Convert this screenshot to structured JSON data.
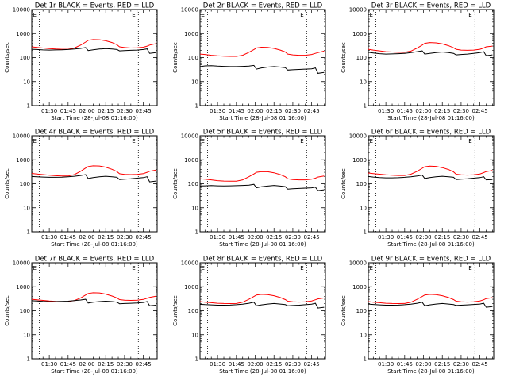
{
  "chart_data": {
    "common": {
      "type": "line",
      "yscale": "log",
      "ylim": [
        1,
        10000
      ],
      "ytick_values": [
        1,
        10,
        100,
        1000,
        10000
      ],
      "ytick_labels": [
        "1",
        "10",
        "100",
        "1000",
        "10000"
      ],
      "xtick_labels": [
        "01:30",
        "01:45",
        "02:00",
        "02:15",
        "02:30",
        "02:45"
      ],
      "xlabel": "Start Time (28-Jul-08 01:16:00)",
      "ylabel": "Counts/sec",
      "x_times": [
        "01:16",
        "01:20",
        "01:25",
        "01:30",
        "01:35",
        "01:40",
        "01:45",
        "01:50",
        "01:55",
        "01:59",
        "02:01",
        "02:05",
        "02:10",
        "02:15",
        "02:20",
        "02:24",
        "02:26",
        "02:30",
        "02:35",
        "02:40",
        "02:45",
        "02:48",
        "02:50",
        "02:55"
      ],
      "vlines": [
        "01:22",
        "02:41"
      ],
      "marker_labels": [
        "E",
        "E"
      ],
      "series_colors": {
        "events": "#000000",
        "lld": "#ff0000"
      },
      "series_names": [
        "Events",
        "LLD"
      ]
    },
    "panels": [
      {
        "title": "Det 1r BLACK = Events, RED = LLD",
        "events": [
          220,
          215,
          208,
          205,
          207,
          210,
          215,
          225,
          240,
          260,
          195,
          210,
          225,
          235,
          225,
          215,
          190,
          195,
          200,
          205,
          215,
          230,
          150,
          160
        ],
        "lld": [
          280,
          265,
          250,
          235,
          225,
          220,
          220,
          250,
          330,
          440,
          520,
          560,
          550,
          500,
          420,
          340,
          280,
          260,
          250,
          255,
          270,
          300,
          330,
          380
        ]
      },
      {
        "title": "Det 2r BLACK = Events, RED = LLD",
        "events": [
          42,
          45,
          46,
          44,
          43,
          42,
          42,
          43,
          44,
          47,
          33,
          37,
          40,
          42,
          40,
          38,
          30,
          31,
          32,
          33,
          34,
          37,
          22,
          24
        ],
        "lld": [
          140,
          135,
          125,
          118,
          115,
          112,
          112,
          125,
          165,
          215,
          250,
          270,
          265,
          240,
          205,
          170,
          140,
          130,
          125,
          125,
          135,
          150,
          160,
          185
        ]
      },
      {
        "title": "Det 3r BLACK = Events, RED = LLD",
        "events": [
          165,
          155,
          145,
          140,
          142,
          145,
          150,
          160,
          175,
          190,
          140,
          150,
          160,
          170,
          160,
          150,
          130,
          135,
          140,
          150,
          160,
          175,
          120,
          130
        ],
        "lld": [
          220,
          205,
          190,
          175,
          170,
          165,
          165,
          185,
          250,
          330,
          390,
          420,
          410,
          370,
          310,
          255,
          220,
          205,
          200,
          205,
          220,
          250,
          280,
          300
        ]
      },
      {
        "title": "Det 4r BLACK = Events, RED = LLD",
        "events": [
          200,
          195,
          190,
          185,
          185,
          188,
          195,
          205,
          220,
          240,
          165,
          180,
          195,
          205,
          195,
          185,
          150,
          155,
          160,
          170,
          180,
          195,
          120,
          130
        ],
        "lld": [
          270,
          255,
          240,
          225,
          215,
          210,
          210,
          240,
          330,
          450,
          520,
          560,
          550,
          490,
          400,
          320,
          260,
          245,
          240,
          245,
          265,
          300,
          330,
          370
        ]
      },
      {
        "title": "Det 5r BLACK = Events, RED = LLD",
        "events": [
          80,
          82,
          84,
          82,
          81,
          82,
          83,
          85,
          88,
          95,
          68,
          75,
          80,
          85,
          80,
          76,
          60,
          62,
          64,
          66,
          68,
          72,
          52,
          56
        ],
        "lld": [
          160,
          155,
          145,
          135,
          130,
          128,
          128,
          145,
          195,
          255,
          300,
          320,
          315,
          285,
          240,
          195,
          160,
          150,
          145,
          145,
          155,
          170,
          190,
          210
        ]
      },
      {
        "title": "Det 6r BLACK = Events, RED = LLD",
        "events": [
          200,
          190,
          180,
          175,
          175,
          178,
          185,
          195,
          210,
          230,
          165,
          180,
          195,
          205,
          195,
          185,
          150,
          155,
          160,
          170,
          180,
          195,
          145,
          150
        ],
        "lld": [
          280,
          265,
          250,
          235,
          225,
          220,
          220,
          250,
          330,
          440,
          510,
          540,
          530,
          470,
          390,
          310,
          250,
          235,
          230,
          235,
          255,
          290,
          320,
          360
        ]
      },
      {
        "title": "Det 7r BLACK = Events, RED = LLD",
        "events": [
          260,
          255,
          245,
          240,
          240,
          243,
          250,
          262,
          280,
          300,
          210,
          225,
          240,
          250,
          240,
          228,
          195,
          200,
          205,
          210,
          220,
          240,
          160,
          170
        ],
        "lld": [
          300,
          285,
          270,
          255,
          245,
          240,
          240,
          265,
          340,
          450,
          520,
          560,
          550,
          490,
          410,
          340,
          290,
          275,
          270,
          275,
          295,
          330,
          360,
          400
        ]
      },
      {
        "title": "Det 8r BLACK = Events, RED = LLD",
        "events": [
          185,
          180,
          175,
          170,
          170,
          172,
          178,
          188,
          205,
          225,
          160,
          175,
          190,
          200,
          190,
          180,
          160,
          165,
          170,
          178,
          188,
          205,
          130,
          140
        ],
        "lld": [
          240,
          228,
          215,
          205,
          200,
          198,
          200,
          225,
          300,
          390,
          450,
          480,
          470,
          420,
          355,
          290,
          250,
          235,
          230,
          235,
          255,
          285,
          310,
          340
        ]
      },
      {
        "title": "Det 9r BLACK = Events, RED = LLD",
        "events": [
          190,
          183,
          176,
          170,
          170,
          172,
          178,
          188,
          205,
          225,
          160,
          175,
          190,
          200,
          190,
          180,
          165,
          170,
          175,
          182,
          190,
          205,
          140,
          150
        ],
        "lld": [
          240,
          228,
          215,
          205,
          200,
          198,
          200,
          225,
          300,
          390,
          450,
          480,
          470,
          420,
          355,
          290,
          250,
          235,
          230,
          235,
          255,
          285,
          320,
          350
        ]
      }
    ]
  }
}
